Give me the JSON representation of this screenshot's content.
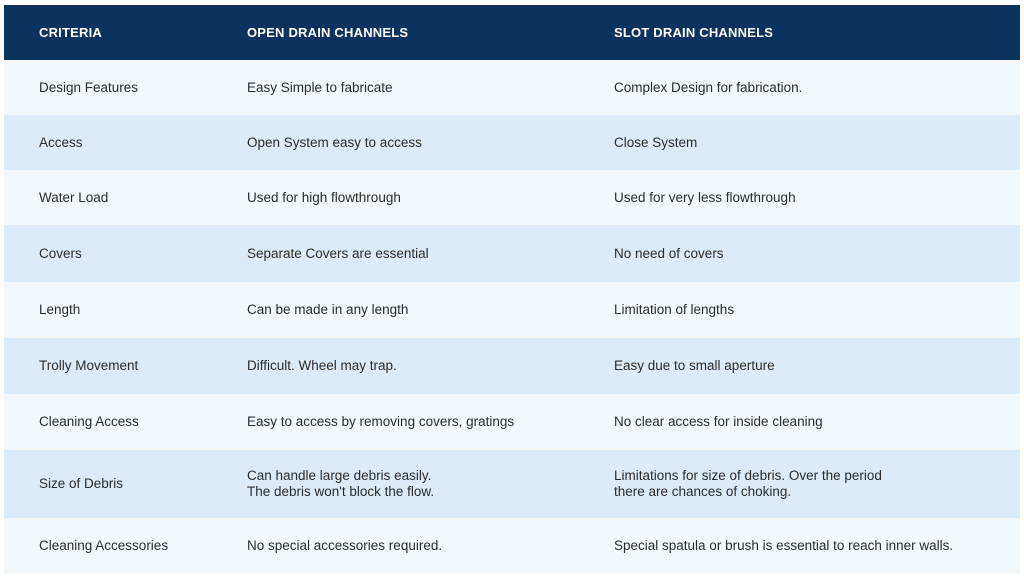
{
  "table": {
    "header": [
      "CRITERIA",
      "OPEN DRAIN CHANNELS",
      "SLOT DRAIN CHANNELS"
    ],
    "rows": [
      [
        "Design Features",
        "Easy Simple to fabricate",
        "Complex Design for fabrication."
      ],
      [
        "Access",
        "Open System easy to access",
        "Close System"
      ],
      [
        "Water Load",
        "Used for high flowthrough",
        "Used for very less flowthrough"
      ],
      [
        "Covers",
        "Separate Covers are essential",
        "No need of covers"
      ],
      [
        "Length",
        "Can be made in any length",
        "Limitation of lengths"
      ],
      [
        "Trolly Movement",
        "Difficult. Wheel may trap.",
        "Easy due to small aperture"
      ],
      [
        "Cleaning Access",
        "Easy to access by removing covers, gratings",
        "No clear access for inside cleaning"
      ],
      [
        "Size of Debris",
        "Can handle large debris easily.\nThe debris won't block the flow.",
        "Limitations for size of debris. Over the period\nthere are chances of choking."
      ],
      [
        "Cleaning Accessories",
        "No special accessories required.",
        "Special spatula or brush is essential to reach inner walls."
      ]
    ]
  }
}
